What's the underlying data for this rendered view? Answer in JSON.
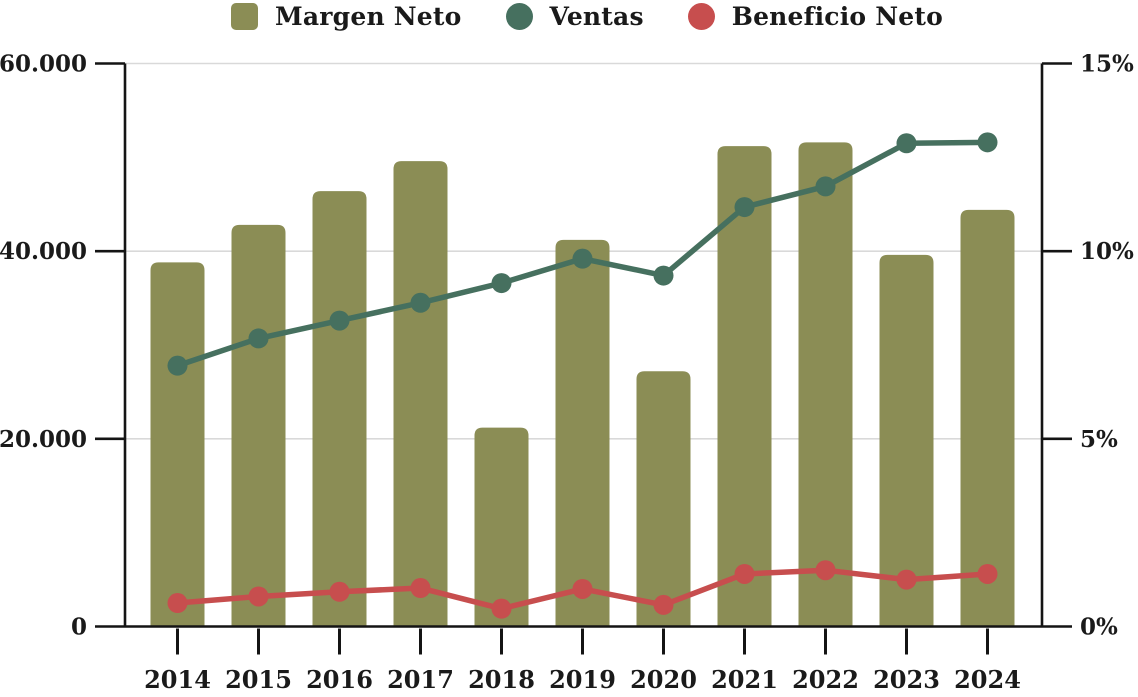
{
  "page": {
    "background": "#ffffff"
  },
  "chart_data": {
    "type": "bar",
    "title": "",
    "categories": [
      "2014",
      "2015",
      "2016",
      "2017",
      "2018",
      "2019",
      "2020",
      "2021",
      "2022",
      "2023",
      "2024"
    ],
    "series": [
      {
        "name": "Margen Neto",
        "type": "bar",
        "axis": "right",
        "color": "#8b8d55",
        "swatch": "square",
        "values": [
          9.7,
          10.7,
          11.6,
          12.4,
          5.3,
          10.3,
          6.8,
          12.8,
          12.9,
          9.9,
          11.1
        ]
      },
      {
        "name": "Ventas",
        "type": "line",
        "axis": "left",
        "color": "#46705f",
        "swatch": "circle",
        "values": [
          27800,
          30700,
          32600,
          34500,
          36600,
          39200,
          37400,
          44700,
          46900,
          51500,
          51600
        ]
      },
      {
        "name": "Beneficio Neto",
        "type": "line",
        "axis": "left",
        "color": "#c74e4e",
        "swatch": "circle",
        "values": [
          2500,
          3200,
          3700,
          4100,
          1900,
          4000,
          2300,
          5600,
          6000,
          5000,
          5600
        ]
      }
    ],
    "left_axis": {
      "min": 0,
      "max": 60000,
      "tick_values": [
        0,
        20000,
        40000,
        60000
      ],
      "tick_labels": [
        "0",
        "20.000",
        "40.000",
        "60.000"
      ]
    },
    "right_axis": {
      "min": 0,
      "max": 15,
      "tick_values": [
        0,
        5,
        10,
        15
      ],
      "tick_labels": [
        "0%",
        "5%",
        "10%",
        "15%"
      ]
    },
    "legend_position": "top",
    "grid": {
      "show": true,
      "color": "#d9d9d9"
    },
    "axis_color": "#141414",
    "text_color": "#1a1a1a"
  }
}
